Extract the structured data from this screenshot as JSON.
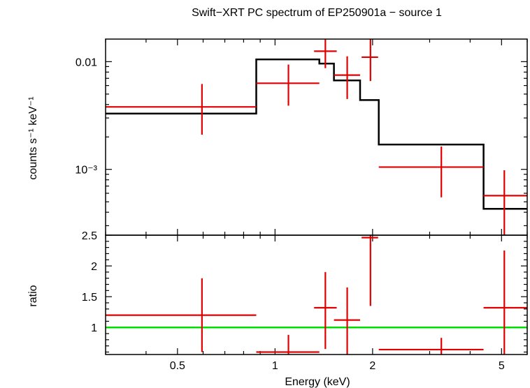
{
  "chart_data": [
    {
      "type": "scatter",
      "panel": "spectrum",
      "title": "Swift−XRT PC spectrum of EP250901a − source 1",
      "xlabel": "Energy (keV)",
      "ylabel": "counts s⁻¹ keV⁻¹",
      "xscale": "log",
      "yscale": "log",
      "xlim": [
        0.3,
        6.0
      ],
      "ylim": [
        0.000245,
        0.0162
      ],
      "y_ticks": [
        {
          "value": 0.01,
          "label": "0.01"
        },
        {
          "value": 0.001,
          "label": "10⁻³"
        }
      ],
      "series": [
        {
          "name": "data",
          "color": "#e00000",
          "points": [
            {
              "x": 0.595,
              "xlo": 0.3,
              "xhi": 0.875,
              "y": 0.0038,
              "ylo": 0.0021,
              "yhi": 0.0062
            },
            {
              "x": 1.1,
              "xlo": 0.875,
              "xhi": 1.37,
              "y": 0.0063,
              "ylo": 0.0039,
              "yhi": 0.0094
            },
            {
              "x": 1.43,
              "xlo": 1.32,
              "xhi": 1.55,
              "y": 0.0125,
              "ylo": 0.0087,
              "yhi": 0.0175
            },
            {
              "x": 1.67,
              "xlo": 1.52,
              "xhi": 1.83,
              "y": 0.0075,
              "ylo": 0.0045,
              "yhi": 0.0112
            },
            {
              "x": 1.97,
              "xlo": 1.85,
              "xhi": 2.08,
              "y": 0.011,
              "ylo": 0.0066,
              "yhi": 0.0162
            },
            {
              "x": 3.26,
              "xlo": 2.09,
              "xhi": 4.4,
              "y": 0.00105,
              "ylo": 0.00055,
              "yhi": 0.00163
            },
            {
              "x": 5.1,
              "xlo": 4.4,
              "xhi": 6.0,
              "y": 0.00057,
              "ylo": 0.000245,
              "yhi": 0.00098
            }
          ]
        },
        {
          "name": "model",
          "color": "#000000",
          "steps": [
            {
              "x0": 0.3,
              "x1": 0.875,
              "y": 0.0033
            },
            {
              "x0": 0.875,
              "x1": 1.37,
              "y": 0.0105
            },
            {
              "x0": 1.37,
              "x1": 1.52,
              "y": 0.0096
            },
            {
              "x0": 1.52,
              "x1": 1.83,
              "y": 0.0067
            },
            {
              "x0": 1.83,
              "x1": 2.09,
              "y": 0.0044
            },
            {
              "x0": 2.09,
              "x1": 4.4,
              "y": 0.0017
            },
            {
              "x0": 4.4,
              "x1": 6.0,
              "y": 0.00043
            }
          ]
        }
      ]
    },
    {
      "type": "scatter",
      "panel": "ratio",
      "xlabel": "Energy (keV)",
      "ylabel": "ratio",
      "xscale": "log",
      "yscale": "linear",
      "xlim": [
        0.3,
        6.0
      ],
      "ylim": [
        0.56,
        2.5
      ],
      "x_ticks": [
        {
          "value": 0.5,
          "label": "0.5"
        },
        {
          "value": 1,
          "label": "1"
        },
        {
          "value": 2,
          "label": "2"
        },
        {
          "value": 5,
          "label": "5"
        }
      ],
      "y_ticks": [
        {
          "value": 1,
          "label": "1"
        },
        {
          "value": 1.5,
          "label": "1.5"
        },
        {
          "value": 2,
          "label": "2"
        },
        {
          "value": 2.5,
          "label": "2.5"
        }
      ],
      "reference_line": {
        "y": 1,
        "color": "#00e000"
      },
      "series": [
        {
          "name": "data",
          "color": "#e00000",
          "points": [
            {
              "x": 0.595,
              "xlo": 0.3,
              "xhi": 0.875,
              "y": 1.2,
              "ylo": 0.6,
              "yhi": 1.8
            },
            {
              "x": 1.1,
              "xlo": 0.875,
              "xhi": 1.37,
              "y": 0.6,
              "ylo": 0.56,
              "yhi": 0.88
            },
            {
              "x": 1.43,
              "xlo": 1.32,
              "xhi": 1.55,
              "y": 1.32,
              "ylo": 0.65,
              "yhi": 1.9
            },
            {
              "x": 1.67,
              "xlo": 1.52,
              "xhi": 1.83,
              "y": 1.12,
              "ylo": 0.56,
              "yhi": 1.65
            },
            {
              "x": 1.97,
              "xlo": 1.85,
              "xhi": 2.08,
              "y": 2.46,
              "ylo": 1.35,
              "yhi": 2.5
            },
            {
              "x": 3.26,
              "xlo": 2.09,
              "xhi": 4.4,
              "y": 0.64,
              "ylo": 0.56,
              "yhi": 0.83
            },
            {
              "x": 5.1,
              "xlo": 4.4,
              "xhi": 6.0,
              "y": 1.32,
              "ylo": 0.56,
              "yhi": 2.25
            }
          ]
        }
      ]
    }
  ]
}
